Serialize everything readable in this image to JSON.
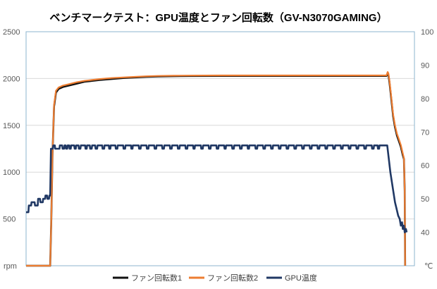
{
  "chart_data": {
    "type": "line",
    "title": "ベンチマークテスト：GPU温度とファン回転数（GV-N3070GAMING）",
    "y_left": {
      "ticks": [
        "2500",
        "2000",
        "1500",
        "1000",
        "500"
      ],
      "unit": "rpm",
      "range": [
        0,
        2500
      ]
    },
    "y_right": {
      "ticks": [
        "100",
        "90",
        "80",
        "70",
        "60",
        "50",
        "40"
      ],
      "unit": "℃",
      "range": [
        30,
        100
      ]
    },
    "legend": {
      "placement": "bottom"
    },
    "x_range": [
      0,
      100
    ],
    "series": [
      {
        "name": "ファン回転数1",
        "axis": "left",
        "color": "#111111",
        "points": [
          [
            0,
            0
          ],
          [
            6.2,
            0
          ],
          [
            6.5,
            500
          ],
          [
            6.8,
            1200
          ],
          [
            7.2,
            1700
          ],
          [
            7.7,
            1850
          ],
          [
            8.4,
            1890
          ],
          [
            9.5,
            1910
          ],
          [
            11,
            1925
          ],
          [
            13,
            1945
          ],
          [
            15,
            1965
          ],
          [
            17,
            1975
          ],
          [
            19,
            1985
          ],
          [
            22,
            1995
          ],
          [
            25,
            2005
          ],
          [
            28,
            2012
          ],
          [
            31,
            2018
          ],
          [
            34,
            2022
          ],
          [
            38,
            2025
          ],
          [
            42,
            2027
          ],
          [
            50,
            2028
          ],
          [
            60,
            2028
          ],
          [
            70,
            2028
          ],
          [
            80,
            2028
          ],
          [
            91,
            2028
          ],
          [
            92.8,
            2028
          ],
          [
            93.1,
            2050
          ],
          [
            93.3,
            2040
          ],
          [
            93.6,
            1950
          ],
          [
            94,
            1800
          ],
          [
            94.5,
            1600
          ],
          [
            95,
            1480
          ],
          [
            95.5,
            1390
          ],
          [
            96,
            1330
          ],
          [
            96.5,
            1270
          ],
          [
            97,
            1180
          ],
          [
            97.3,
            1140
          ],
          [
            97.5,
            800
          ],
          [
            97.6,
            0
          ]
        ]
      },
      {
        "name": "ファン回転数2",
        "axis": "left",
        "color": "#ed7d31",
        "points": [
          [
            0,
            0
          ],
          [
            6.2,
            0
          ],
          [
            6.5,
            500
          ],
          [
            6.8,
            1200
          ],
          [
            7.2,
            1720
          ],
          [
            7.7,
            1870
          ],
          [
            8.4,
            1905
          ],
          [
            9.5,
            1925
          ],
          [
            11,
            1940
          ],
          [
            13,
            1960
          ],
          [
            15,
            1975
          ],
          [
            17,
            1985
          ],
          [
            19,
            1995
          ],
          [
            22,
            2005
          ],
          [
            25,
            2012
          ],
          [
            28,
            2018
          ],
          [
            31,
            2024
          ],
          [
            34,
            2028
          ],
          [
            38,
            2030
          ],
          [
            42,
            2032
          ],
          [
            50,
            2033
          ],
          [
            60,
            2033
          ],
          [
            70,
            2033
          ],
          [
            80,
            2033
          ],
          [
            91,
            2033
          ],
          [
            92.8,
            2033
          ],
          [
            93.1,
            2070
          ],
          [
            93.3,
            2055
          ],
          [
            93.6,
            1970
          ],
          [
            94,
            1820
          ],
          [
            94.5,
            1620
          ],
          [
            95,
            1500
          ],
          [
            95.5,
            1410
          ],
          [
            96,
            1350
          ],
          [
            96.5,
            1290
          ],
          [
            97,
            1200
          ],
          [
            97.3,
            1150
          ],
          [
            97.5,
            800
          ],
          [
            97.6,
            0
          ]
        ]
      },
      {
        "name": "GPU温度",
        "axis": "right",
        "color": "#203864",
        "points": [
          [
            0,
            46
          ],
          [
            0.6,
            46
          ],
          [
            0.7,
            48
          ],
          [
            1.3,
            48
          ],
          [
            1.4,
            49
          ],
          [
            2.2,
            49
          ],
          [
            2.3,
            48
          ],
          [
            3,
            48
          ],
          [
            3.1,
            50
          ],
          [
            3.6,
            50
          ],
          [
            3.7,
            49
          ],
          [
            4.3,
            49
          ],
          [
            4.4,
            50
          ],
          [
            4.9,
            50
          ],
          [
            5,
            51
          ],
          [
            5.4,
            51
          ],
          [
            5.5,
            50
          ],
          [
            5.9,
            50
          ],
          [
            6,
            51
          ],
          [
            6.2,
            51
          ],
          [
            6.4,
            65
          ],
          [
            6.9,
            65
          ],
          [
            7,
            66
          ],
          [
            7.4,
            66
          ],
          [
            7.5,
            65
          ],
          [
            8.6,
            65
          ],
          [
            8.7,
            66
          ],
          [
            9.3,
            66
          ],
          [
            9.4,
            65
          ],
          [
            9.8,
            65
          ],
          [
            9.9,
            66
          ],
          [
            10.2,
            66
          ],
          [
            10.3,
            65
          ],
          [
            10.6,
            65
          ],
          [
            10.7,
            66
          ],
          [
            11.1,
            66
          ],
          [
            11.2,
            65
          ],
          [
            11.5,
            65
          ],
          [
            11.6,
            66
          ],
          [
            12.4,
            66
          ],
          [
            12.5,
            65
          ],
          [
            12.8,
            65
          ],
          [
            12.9,
            66
          ],
          [
            13.5,
            66
          ],
          [
            13.6,
            65
          ],
          [
            14,
            65
          ],
          [
            14.1,
            66
          ],
          [
            15.2,
            66
          ],
          [
            15.3,
            65
          ],
          [
            15.6,
            65
          ],
          [
            15.7,
            66
          ],
          [
            16.4,
            66
          ],
          [
            16.5,
            65
          ],
          [
            16.9,
            65
          ],
          [
            17,
            66
          ],
          [
            17.8,
            66
          ],
          [
            17.9,
            65
          ],
          [
            18.3,
            65
          ],
          [
            18.4,
            66
          ],
          [
            19.6,
            66
          ],
          [
            19.7,
            65
          ],
          [
            20.1,
            65
          ],
          [
            20.2,
            66
          ],
          [
            21.3,
            66
          ],
          [
            21.4,
            65
          ],
          [
            21.7,
            65
          ],
          [
            21.8,
            66
          ],
          [
            23,
            66
          ],
          [
            23.1,
            65
          ],
          [
            23.5,
            65
          ],
          [
            23.6,
            66
          ],
          [
            25,
            66
          ],
          [
            25.1,
            65
          ],
          [
            25.5,
            65
          ],
          [
            25.6,
            66
          ],
          [
            27,
            66
          ],
          [
            27.1,
            65
          ],
          [
            27.4,
            65
          ],
          [
            27.5,
            66
          ],
          [
            29,
            66
          ],
          [
            29.1,
            65
          ],
          [
            29.5,
            65
          ],
          [
            29.6,
            66
          ],
          [
            31,
            66
          ],
          [
            31.1,
            65
          ],
          [
            31.5,
            65
          ],
          [
            31.6,
            66
          ],
          [
            33,
            66
          ],
          [
            33.1,
            65
          ],
          [
            33.5,
            65
          ],
          [
            33.6,
            66
          ],
          [
            35,
            66
          ],
          [
            35.1,
            65
          ],
          [
            35.5,
            65
          ],
          [
            35.6,
            66
          ],
          [
            37,
            66
          ],
          [
            37.1,
            65
          ],
          [
            37.5,
            65
          ],
          [
            37.6,
            66
          ],
          [
            39,
            66
          ],
          [
            39.1,
            65
          ],
          [
            39.5,
            65
          ],
          [
            39.6,
            66
          ],
          [
            41,
            66
          ],
          [
            41.1,
            65
          ],
          [
            41.5,
            65
          ],
          [
            41.6,
            66
          ],
          [
            43,
            66
          ],
          [
            43.1,
            65
          ],
          [
            43.4,
            65
          ],
          [
            43.5,
            66
          ],
          [
            45,
            66
          ],
          [
            45.1,
            65
          ],
          [
            45.5,
            65
          ],
          [
            45.6,
            66
          ],
          [
            47,
            66
          ],
          [
            47.1,
            65
          ],
          [
            47.5,
            65
          ],
          [
            47.6,
            66
          ],
          [
            49,
            66
          ],
          [
            49.1,
            65
          ],
          [
            49.5,
            65
          ],
          [
            49.6,
            66
          ],
          [
            51,
            66
          ],
          [
            51.1,
            65
          ],
          [
            51.4,
            65
          ],
          [
            51.5,
            66
          ],
          [
            53,
            66
          ],
          [
            53.1,
            65
          ],
          [
            53.5,
            65
          ],
          [
            53.6,
            66
          ],
          [
            55,
            66
          ],
          [
            55.1,
            65
          ],
          [
            55.5,
            65
          ],
          [
            55.6,
            66
          ],
          [
            57,
            66
          ],
          [
            57.1,
            65
          ],
          [
            57.4,
            65
          ],
          [
            57.5,
            66
          ],
          [
            59,
            66
          ],
          [
            59.1,
            65
          ],
          [
            59.5,
            65
          ],
          [
            59.6,
            66
          ],
          [
            61,
            66
          ],
          [
            61.1,
            65
          ],
          [
            61.5,
            65
          ],
          [
            61.6,
            66
          ],
          [
            63,
            66
          ],
          [
            63.1,
            65
          ],
          [
            63.5,
            65
          ],
          [
            63.6,
            66
          ],
          [
            65,
            66
          ],
          [
            65.1,
            65
          ],
          [
            65.5,
            65
          ],
          [
            65.6,
            66
          ],
          [
            67,
            66
          ],
          [
            67.1,
            65
          ],
          [
            67.5,
            65
          ],
          [
            67.6,
            66
          ],
          [
            69,
            66
          ],
          [
            69.1,
            65
          ],
          [
            69.5,
            65
          ],
          [
            69.6,
            66
          ],
          [
            71,
            66
          ],
          [
            71.1,
            65
          ],
          [
            71.5,
            65
          ],
          [
            71.6,
            66
          ],
          [
            73,
            66
          ],
          [
            73.1,
            65
          ],
          [
            73.5,
            65
          ],
          [
            73.6,
            66
          ],
          [
            75,
            66
          ],
          [
            75.1,
            65
          ],
          [
            75.5,
            65
          ],
          [
            75.6,
            66
          ],
          [
            77,
            66
          ],
          [
            77.1,
            65
          ],
          [
            77.5,
            65
          ],
          [
            77.6,
            66
          ],
          [
            79,
            66
          ],
          [
            79.1,
            65
          ],
          [
            79.5,
            65
          ],
          [
            79.6,
            66
          ],
          [
            81,
            66
          ],
          [
            81.1,
            65
          ],
          [
            81.5,
            65
          ],
          [
            81.6,
            66
          ],
          [
            83,
            66
          ],
          [
            83.1,
            65
          ],
          [
            83.5,
            65
          ],
          [
            83.6,
            66
          ],
          [
            85,
            66
          ],
          [
            85.1,
            65
          ],
          [
            85.5,
            65
          ],
          [
            85.6,
            66
          ],
          [
            87,
            66
          ],
          [
            87.1,
            65
          ],
          [
            87.5,
            65
          ],
          [
            87.6,
            66
          ],
          [
            89,
            66
          ],
          [
            89.1,
            65
          ],
          [
            89.5,
            65
          ],
          [
            89.6,
            66
          ],
          [
            90.5,
            66
          ],
          [
            90.6,
            65
          ],
          [
            90.9,
            65
          ],
          [
            91,
            66
          ],
          [
            93,
            66
          ],
          [
            93.4,
            62
          ],
          [
            93.8,
            58
          ],
          [
            94.2,
            55
          ],
          [
            94.6,
            52
          ],
          [
            95,
            49
          ],
          [
            95.4,
            47
          ],
          [
            95.8,
            45
          ],
          [
            96.2,
            44
          ],
          [
            96.5,
            42
          ],
          [
            96.8,
            43
          ],
          [
            97,
            41
          ],
          [
            97.3,
            42
          ],
          [
            97.5,
            40
          ],
          [
            97.8,
            41
          ],
          [
            98,
            40
          ]
        ]
      }
    ]
  }
}
